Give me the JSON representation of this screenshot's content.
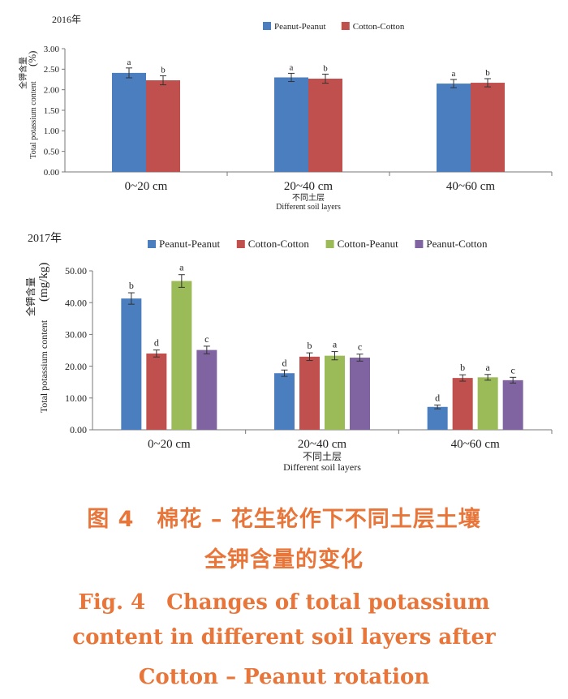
{
  "chart_data": [
    {
      "type": "bar",
      "year_label": "2016年",
      "categories": [
        "0~20 cm",
        "20~40 cm",
        "40~60 cm"
      ],
      "xlabel_cn": "不同土层",
      "xlabel": "Different soil layers",
      "ylabel_cn": "全钾含量",
      "ylabel": "Total potassium content",
      "ylabel_unit": "(%)",
      "ylim": [
        0,
        3
      ],
      "yticks": [
        "0.00",
        "0.50",
        "1.00",
        "1.50",
        "2.00",
        "2.50",
        "3.00"
      ],
      "legend_position": "top-center",
      "series": [
        {
          "name": "Peanut-Peanut",
          "color": "#4a7ebf",
          "values": [
            2.41,
            2.3,
            2.15
          ],
          "errors": [
            0.12,
            0.1,
            0.1
          ],
          "letters": [
            "a",
            "a",
            "a"
          ]
        },
        {
          "name": "Cotton-Cotton",
          "color": "#c0504d",
          "values": [
            2.23,
            2.27,
            2.17
          ],
          "errors": [
            0.11,
            0.11,
            0.1
          ],
          "letters": [
            "b",
            "b",
            "b"
          ]
        }
      ]
    },
    {
      "type": "bar",
      "year_label": "2017年",
      "categories": [
        "0~20 cm",
        "20~40 cm",
        "40~60 cm"
      ],
      "xlabel_cn": "不同土层",
      "xlabel": "Different soil layers",
      "ylabel_cn": "全钾含量",
      "ylabel": "Total potassium content",
      "ylabel_unit": "(mg/kg)",
      "ylim": [
        0,
        50
      ],
      "yticks": [
        "0.00",
        "10.00",
        "20.00",
        "30.00",
        "40.00",
        "50.00"
      ],
      "legend_position": "top-center",
      "series": [
        {
          "name": "Peanut-Peanut",
          "color": "#4a7ebf",
          "values": [
            41.3,
            17.8,
            7.2
          ],
          "errors": [
            1.8,
            1.0,
            0.6
          ],
          "letters": [
            "b",
            "d",
            "d"
          ]
        },
        {
          "name": "Cotton-Cotton",
          "color": "#c0504d",
          "values": [
            24.0,
            23.0,
            16.3
          ],
          "errors": [
            1.1,
            1.2,
            1.0
          ],
          "letters": [
            "d",
            "b",
            "b"
          ]
        },
        {
          "name": "Cotton-Peanut",
          "color": "#9bbb59",
          "values": [
            46.8,
            23.3,
            16.5
          ],
          "errors": [
            2.0,
            1.3,
            0.9
          ],
          "letters": [
            "a",
            "a",
            "a"
          ]
        },
        {
          "name": "Peanut-Cotton",
          "color": "#8064a2",
          "values": [
            25.1,
            22.7,
            15.6
          ],
          "errors": [
            1.2,
            1.1,
            0.9
          ],
          "letters": [
            "c",
            "c",
            "c"
          ]
        }
      ]
    }
  ],
  "caption": {
    "cn_line1": "图 4　棉花 – 花生轮作下不同土层土壤",
    "cn_line2": "全钾含量的变化",
    "en_line1": "Fig. 4　Changes of total potassium",
    "en_line2": "content in different soil layers after",
    "en_line3": "Cotton – Peanut rotation"
  }
}
